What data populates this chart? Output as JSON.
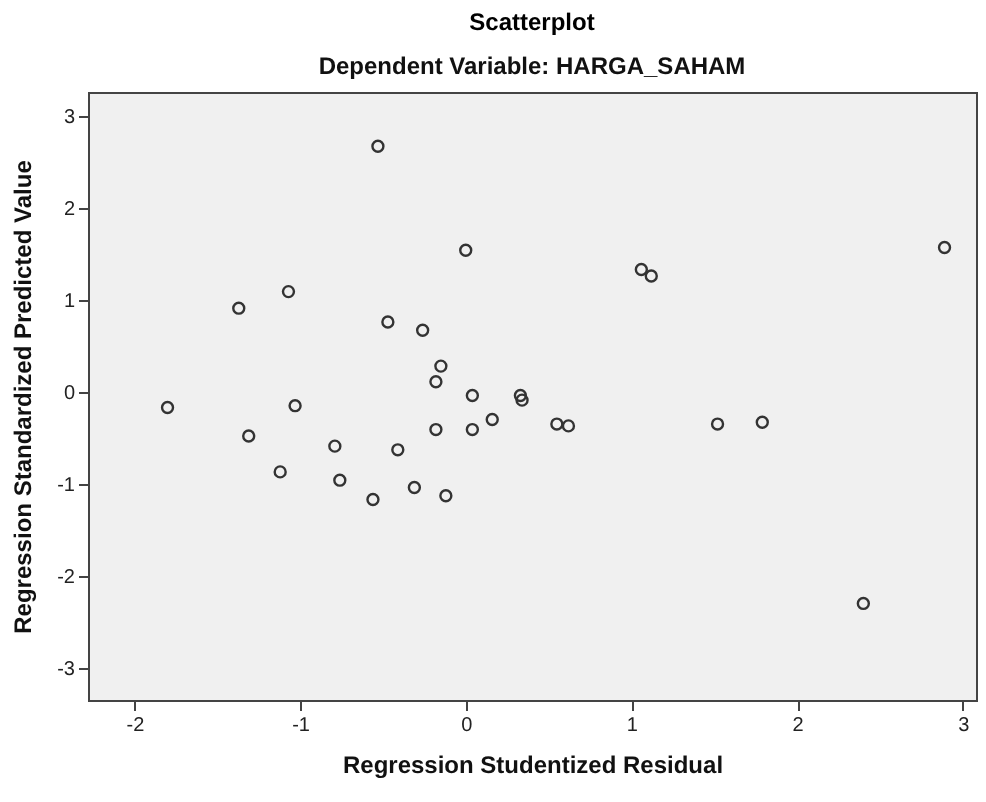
{
  "chart_data": {
    "type": "scatter",
    "title": "Scatterplot",
    "subtitle": "Dependent Variable: HARGA_SAHAM",
    "xlabel": "Regression Studentized Residual",
    "ylabel": "Regression Standardized Predicted Value",
    "x": [
      -0.53,
      0.0,
      -1.37,
      -1.07,
      -0.47,
      -0.26,
      -0.15,
      -0.18,
      0.04,
      0.33,
      0.34,
      0.04,
      -0.18,
      0.16,
      -1.8,
      -1.03,
      -1.31,
      -0.79,
      -0.41,
      -1.12,
      -0.76,
      -0.56,
      -0.31,
      -0.12,
      0.55,
      0.62,
      1.52,
      1.79,
      2.4,
      2.89,
      1.06,
      1.12
    ],
    "series": [
      {
        "color": "#333333",
        "values": [
          2.67,
          1.54,
          0.91,
          1.09,
          0.76,
          0.67,
          0.28,
          0.11,
          -0.04,
          -0.04,
          -0.09,
          -0.41,
          -0.41,
          -0.3,
          -0.17,
          -0.15,
          -0.48,
          -0.59,
          -0.63,
          -0.87,
          -0.96,
          -1.17,
          -1.04,
          -1.13,
          -0.35,
          -0.37,
          -0.35,
          -0.33,
          -2.3,
          1.57,
          1.33,
          1.26
        ]
      }
    ],
    "xlim": [
      -2.28,
      3.08
    ],
    "xticks": [
      -2,
      -1,
      0,
      1,
      2,
      3
    ],
    "ylim": [
      -3.35,
      3.26
    ],
    "yticks": [
      -3,
      -2,
      -1,
      0,
      1,
      2,
      3
    ],
    "marker": "circle",
    "grid": false,
    "legend": false
  }
}
